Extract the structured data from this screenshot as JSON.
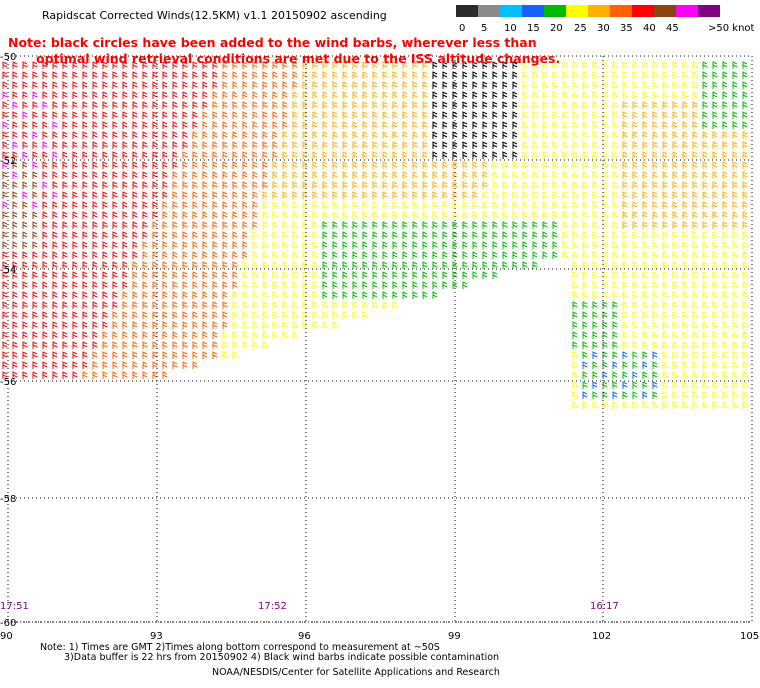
{
  "title": "Rapidscat Corrected Winds(12.5KM) v1.1 20150902 ascending",
  "note_line1": "Note: black circles have been added to the wind barbs, wherever less than",
  "note_line2": "optimal wind retrieval conditions are met due to the ISS altitude changes.",
  "legend": {
    "labels": [
      "0",
      "5",
      "10",
      "15",
      "20",
      "25",
      "30",
      "35",
      "40",
      "45",
      ">50 knots"
    ],
    "colors": [
      "#2b2b2b",
      "#8a8a8a",
      "#00bfff",
      "#1560ff",
      "#00bb00",
      "#ffff00",
      "#ffb000",
      "#ff6000",
      "#ff0000",
      "#8b4513",
      "#ff00ff",
      "#800080"
    ]
  },
  "axes": {
    "lon_labels": [
      "90",
      "93",
      "96",
      "99",
      "102",
      "105"
    ],
    "lat_labels": [
      "-50",
      "-52",
      "-54",
      "-56",
      "-58",
      "-60"
    ]
  },
  "times": [
    "17:51",
    "17:52",
    "16:17"
  ],
  "footer": {
    "line1": "Note: 1) Times are GMT 2)Times along bottom correspond to measurement at ~50S",
    "line2": "3)Data buffer is 22 hrs from 20150902 4) Black wind barbs indicate possible contamination",
    "line3": "NOAA/NESDIS/Center for Satellite Applications and Research"
  }
}
